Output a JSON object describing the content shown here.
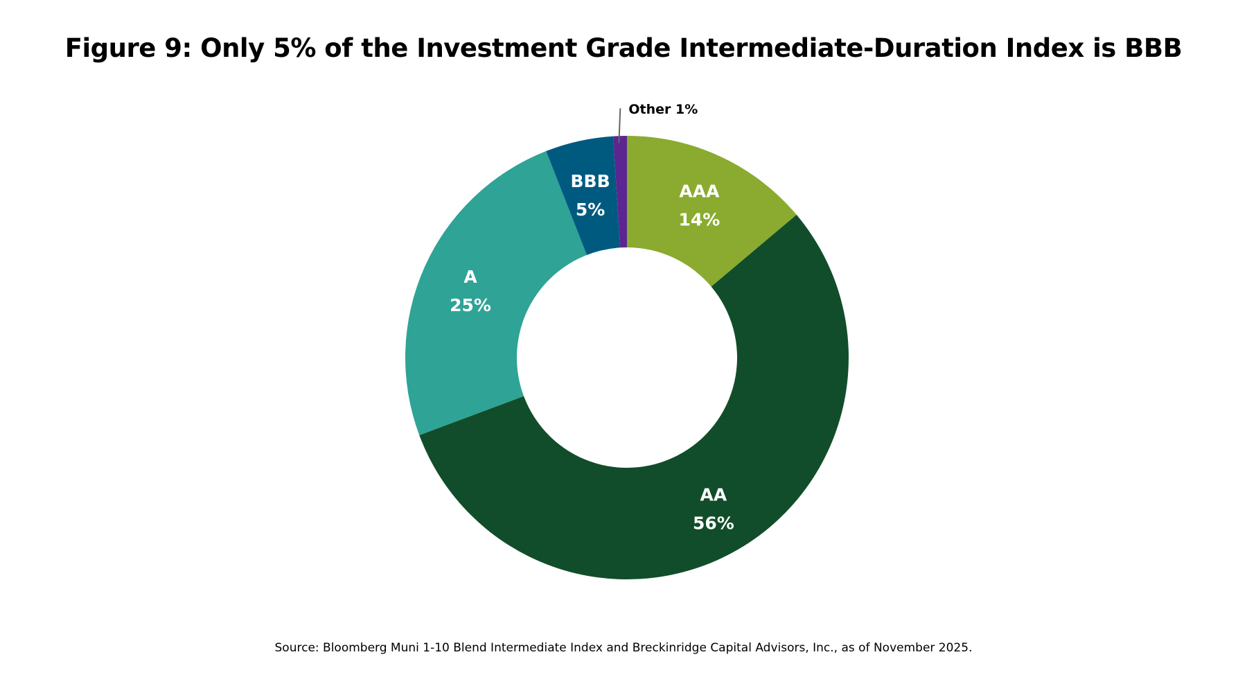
{
  "chart_data": {
    "type": "pie",
    "donut": true,
    "title": "Figure 9: Only 5% of the Investment Grade Intermediate-Duration Index is BBB",
    "source": "Source: Bloomberg Muni 1-10 Blend Intermediate Index and Breckinridge Capital Advisors, Inc., as of November 2025.",
    "slices": [
      {
        "name": "AAA",
        "value": 14,
        "label": "14%",
        "color": "#8aab2f"
      },
      {
        "name": "AA",
        "value": 56,
        "label": "56%",
        "color": "#114d2a"
      },
      {
        "name": "A",
        "value": 25,
        "label": "25%",
        "color": "#2ea396"
      },
      {
        "name": "BBB",
        "value": 5,
        "label": "5%",
        "color": "#005a80"
      },
      {
        "name": "Other",
        "value": 1,
        "label": "1%",
        "color": "#5b2691",
        "callout": "Other 1%"
      }
    ]
  }
}
